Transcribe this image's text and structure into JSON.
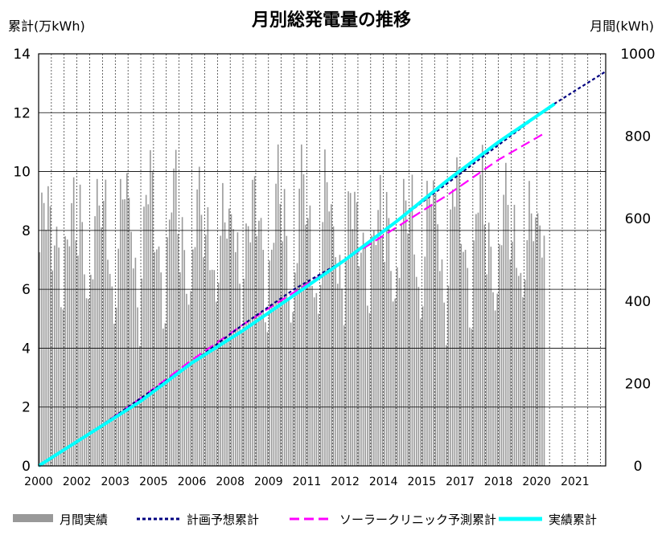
{
  "chart_data": {
    "type": "bar+line",
    "title": "月別総発電量の推移",
    "y_left_label": "累計(万kWh)",
    "y_right_label": "月間(kWh)",
    "y_left_range": [
      0,
      14
    ],
    "y_left_ticks": [
      "0",
      "2",
      "4",
      "6",
      "8",
      "10",
      "12",
      "14"
    ],
    "y_right_range": [
      0,
      1000
    ],
    "y_right_ticks": [
      "0",
      "200",
      "400",
      "600",
      "800",
      "1000"
    ],
    "x_range": [
      2000,
      2022.2
    ],
    "x_ticks": [
      {
        "x": 2000,
        "label": "2000"
      },
      {
        "x": 2001.5,
        "label": "2002"
      },
      {
        "x": 2003,
        "label": "2003"
      },
      {
        "x": 2004.5,
        "label": "2005"
      },
      {
        "x": 2006,
        "label": "2006"
      },
      {
        "x": 2007.5,
        "label": "2008"
      },
      {
        "x": 2009,
        "label": "2009"
      },
      {
        "x": 2010.5,
        "label": "2011"
      },
      {
        "x": 2012,
        "label": "2012"
      },
      {
        "x": 2013.5,
        "label": "2014"
      },
      {
        "x": 2015,
        "label": "2015"
      },
      {
        "x": 2016.5,
        "label": "2017"
      },
      {
        "x": 2018,
        "label": "2018"
      },
      {
        "x": 2019.5,
        "label": "2020"
      },
      {
        "x": 2021,
        "label": "2021"
      }
    ],
    "grid": true,
    "legend_position": "bottom",
    "legend": [
      {
        "key": "monthly",
        "label": "月間実績",
        "color": "#999999",
        "style": "bar"
      },
      {
        "key": "plan",
        "label": "計画予想累計",
        "color": "#000080",
        "style": "dotted"
      },
      {
        "key": "solar",
        "label": "ソーラークリニック予測累計",
        "color": "#ff00ff",
        "style": "dashed"
      },
      {
        "key": "actual",
        "label": "実績累計",
        "color": "#00ffff",
        "style": "solid"
      }
    ],
    "monthly_seasonal_profile": [
      480,
      560,
      640,
      660,
      680,
      620,
      560,
      600,
      520,
      480,
      400,
      360
    ],
    "monthly_range": {
      "start": 2000.0,
      "end": 2019.8
    },
    "series": [
      {
        "key": "plan",
        "points": [
          [
            2000,
            0
          ],
          [
            2002,
            1.1
          ],
          [
            2004,
            2.3
          ],
          [
            2006,
            3.5
          ],
          [
            2008,
            4.8
          ],
          [
            2010,
            6.0
          ],
          [
            2012,
            7.0
          ],
          [
            2014,
            8.3
          ],
          [
            2016,
            9.6
          ],
          [
            2018,
            10.9
          ],
          [
            2020,
            12.2
          ],
          [
            2022.2,
            13.4
          ]
        ]
      },
      {
        "key": "solar",
        "points": [
          [
            2000,
            0
          ],
          [
            2002,
            1.1
          ],
          [
            2004,
            2.3
          ],
          [
            2006,
            3.6
          ],
          [
            2008,
            4.8
          ],
          [
            2010,
            5.9
          ],
          [
            2012,
            7.0
          ],
          [
            2014,
            8.1
          ],
          [
            2016,
            9.2
          ],
          [
            2018,
            10.4
          ],
          [
            2019.8,
            11.3
          ]
        ]
      },
      {
        "key": "actual",
        "points": [
          [
            2000,
            0
          ],
          [
            2002,
            1.1
          ],
          [
            2004,
            2.2
          ],
          [
            2006,
            3.5
          ],
          [
            2008,
            4.6
          ],
          [
            2010,
            5.8
          ],
          [
            2012,
            7.0
          ],
          [
            2014,
            8.3
          ],
          [
            2016,
            9.7
          ],
          [
            2018,
            11.0
          ],
          [
            2020.2,
            12.3
          ]
        ]
      }
    ]
  }
}
